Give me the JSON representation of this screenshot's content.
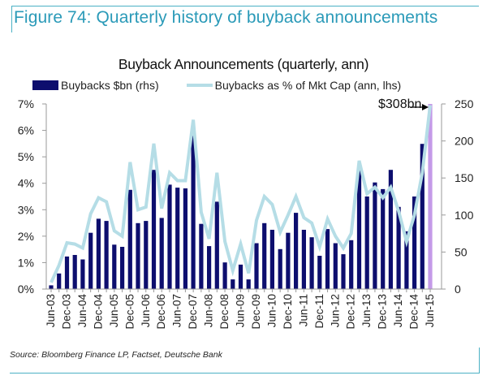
{
  "figure": {
    "title": "Figure 74: Quarterly history of buyback announcements",
    "source": "Source: Bloomberg Finance LP, Factset, Deutsche Bank"
  },
  "chart_data": {
    "type": "bar+line",
    "title": "Buyback Announcements (quarterly, ann)",
    "xlabel": "",
    "ylabel_left": "Buybacks as % of Mkt Cap (ann, lhs)",
    "ylabel_right": "Buybacks $bn (rhs)",
    "ylim_left": [
      0,
      7
    ],
    "ylim_right": [
      0,
      250
    ],
    "left_ticks": [
      "0%",
      "1%",
      "2%",
      "3%",
      "4%",
      "5%",
      "6%",
      "7%"
    ],
    "right_ticks": [
      "0",
      "50",
      "100",
      "150",
      "200",
      "250"
    ],
    "x_tick_labels": [
      "Jun-03",
      "Dec-03",
      "Jun-04",
      "Dec-04",
      "Jun-05",
      "Dec-05",
      "Jun-06",
      "Dec-06",
      "Jun-07",
      "Dec-07",
      "Jun-08",
      "Dec-08",
      "Jun-09",
      "Dec-09",
      "Jun-10",
      "Dec-10",
      "Jun-11",
      "Dec-11",
      "Jun-12",
      "Dec-12",
      "Jun-13",
      "Dec-13",
      "Jun-14",
      "Dec-14",
      "Jun-15"
    ],
    "categories": [
      "Jun-03",
      "Sep-03",
      "Dec-03",
      "Mar-04",
      "Jun-04",
      "Sep-04",
      "Dec-04",
      "Mar-05",
      "Jun-05",
      "Sep-05",
      "Dec-05",
      "Mar-06",
      "Jun-06",
      "Sep-06",
      "Dec-06",
      "Mar-07",
      "Jun-07",
      "Sep-07",
      "Dec-07",
      "Mar-08",
      "Jun-08",
      "Sep-08",
      "Dec-08",
      "Mar-09",
      "Jun-09",
      "Sep-09",
      "Dec-09",
      "Mar-10",
      "Jun-10",
      "Sep-10",
      "Dec-10",
      "Mar-11",
      "Jun-11",
      "Sep-11",
      "Dec-11",
      "Mar-12",
      "Jun-12",
      "Sep-12",
      "Dec-12",
      "Mar-13",
      "Jun-13",
      "Sep-13",
      "Dec-13",
      "Mar-14",
      "Jun-14",
      "Sep-14",
      "Dec-14",
      "Mar-15",
      "Jun-15"
    ],
    "series": [
      {
        "name": "Buybacks $bn (rhs)",
        "type": "bar",
        "axis": "right",
        "color": "#0d0e6e",
        "values": [
          5,
          21,
          44,
          46,
          40,
          76,
          95,
          92,
          60,
          57,
          134,
          89,
          92,
          161,
          96,
          141,
          137,
          136,
          207,
          88,
          58,
          118,
          36,
          13,
          33,
          13,
          62,
          89,
          80,
          54,
          76,
          103,
          80,
          70,
          45,
          81,
          62,
          47,
          66,
          162,
          125,
          144,
          135,
          161,
          111,
          78,
          125,
          196,
          308
        ]
      },
      {
        "name": "Buybacks as % of Mkt Cap (ann, lhs)",
        "type": "line",
        "axis": "left",
        "color": "#b5dde6",
        "values": [
          0.25,
          0.9,
          1.75,
          1.7,
          1.55,
          2.85,
          3.45,
          3.3,
          2.2,
          2.0,
          4.8,
          3.0,
          3.1,
          5.5,
          3.05,
          4.4,
          4.1,
          4.1,
          6.4,
          2.9,
          1.9,
          4.4,
          1.8,
          0.7,
          1.7,
          0.6,
          2.6,
          3.5,
          3.2,
          2.15,
          2.8,
          3.5,
          2.7,
          2.5,
          1.6,
          2.65,
          2.0,
          1.55,
          2.1,
          4.85,
          3.6,
          3.85,
          3.45,
          3.85,
          2.95,
          1.8,
          2.8,
          4.4,
          6.95
        ]
      }
    ],
    "highlight": {
      "index": 48,
      "color": "#c49ae8",
      "label": "$308bn"
    },
    "legend_position": "top",
    "grid": false
  },
  "legend": {
    "bar_label": "Buybacks $bn (rhs)",
    "line_label": "Buybacks as % of Mkt Cap (ann, lhs)"
  },
  "annotation": "$308bn"
}
